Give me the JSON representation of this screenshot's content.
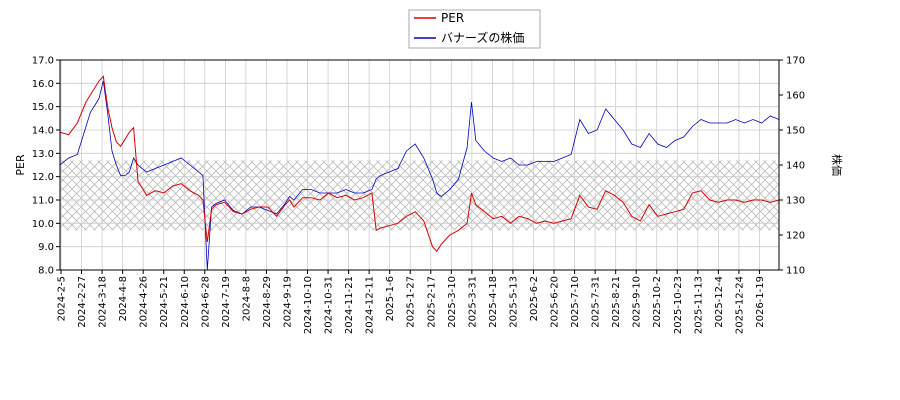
{
  "chart_data": {
    "type": "line",
    "legend": {
      "placement": "top-center",
      "entries": [
        "PER",
        "バナーズの株価"
      ]
    },
    "y_left": {
      "label": "PER",
      "range": [
        8.0,
        17.0
      ],
      "ticks": [
        "8.0",
        "9.0",
        "10.0",
        "11.0",
        "12.0",
        "13.0",
        "14.0",
        "15.0",
        "16.0",
        "17.0"
      ]
    },
    "y_right": {
      "label": "株価",
      "range": [
        110,
        170
      ],
      "ticks": [
        "110",
        "120",
        "130",
        "140",
        "150",
        "160",
        "170"
      ]
    },
    "x_axis": {
      "ticks": [
        "2024-2-5",
        "2024-2-27",
        "2024-3-18",
        "2024-4-8",
        "2024-4-26",
        "2024-5-21",
        "2024-6-10",
        "2024-6-28",
        "2024-7-19",
        "2024-8-8",
        "2024-8-29",
        "2024-9-19",
        "2024-10-10",
        "2024-10-31",
        "2024-11-21",
        "2024-12-11",
        "2025-1-6",
        "2025-1-27",
        "2025-2-17",
        "2025-3-10",
        "2025-3-31",
        "2025-4-18",
        "2025-5-13",
        "2025-6-2",
        "2025-6-20",
        "2025-7-10",
        "2025-7-31",
        "2025-8-21",
        "2025-9-10",
        "2025-10-2",
        "2025-10-23",
        "2025-11-13",
        "2025-12-4",
        "2025-12-24",
        "2026-1-19"
      ]
    },
    "grid": true,
    "shaded_band": {
      "axis": "left",
      "range": [
        9.7,
        12.7
      ],
      "pattern": "crosshatch"
    },
    "colors": {
      "PER": "#dd0000",
      "price": "#0000cc"
    },
    "series": [
      {
        "name": "PER",
        "axis": "left",
        "points": [
          [
            0,
            13.9
          ],
          [
            1,
            13.8
          ],
          [
            2,
            14.3
          ],
          [
            3,
            15.2
          ],
          [
            3.5,
            15.5
          ],
          [
            4,
            15.8
          ],
          [
            4.5,
            16.1
          ],
          [
            5,
            16.3
          ],
          [
            5.5,
            15.0
          ],
          [
            6,
            14.1
          ],
          [
            6.5,
            13.5
          ],
          [
            7,
            13.3
          ],
          [
            7.5,
            13.6
          ],
          [
            8,
            13.9
          ],
          [
            8.5,
            14.1
          ],
          [
            9,
            11.8
          ],
          [
            9.5,
            11.5
          ],
          [
            10,
            11.2
          ],
          [
            11,
            11.4
          ],
          [
            12,
            11.3
          ],
          [
            13,
            11.6
          ],
          [
            14,
            11.7
          ],
          [
            15,
            11.4
          ],
          [
            16,
            11.2
          ],
          [
            16.5,
            11.0
          ],
          [
            17,
            9.2
          ],
          [
            17.5,
            10.6
          ],
          [
            18,
            10.8
          ],
          [
            19,
            10.9
          ],
          [
            20,
            10.5
          ],
          [
            21,
            10.4
          ],
          [
            22,
            10.6
          ],
          [
            23,
            10.7
          ],
          [
            24,
            10.7
          ],
          [
            25,
            10.3
          ],
          [
            26,
            10.8
          ],
          [
            26.5,
            11.0
          ],
          [
            27,
            10.7
          ],
          [
            28,
            11.1
          ],
          [
            29,
            11.1
          ],
          [
            30,
            11.0
          ],
          [
            31,
            11.3
          ],
          [
            32,
            11.1
          ],
          [
            33,
            11.2
          ],
          [
            34,
            11.0
          ],
          [
            35,
            11.1
          ],
          [
            36,
            11.3
          ],
          [
            36.5,
            9.7
          ],
          [
            37,
            9.8
          ],
          [
            38,
            9.9
          ],
          [
            39,
            10.0
          ],
          [
            40,
            10.3
          ],
          [
            41,
            10.5
          ],
          [
            42,
            10.1
          ],
          [
            43,
            9.0
          ],
          [
            43.5,
            8.8
          ],
          [
            44,
            9.1
          ],
          [
            45,
            9.5
          ],
          [
            46,
            9.7
          ],
          [
            47,
            10.0
          ],
          [
            47.5,
            11.3
          ],
          [
            48,
            10.8
          ],
          [
            49,
            10.5
          ],
          [
            50,
            10.2
          ],
          [
            51,
            10.3
          ],
          [
            52,
            10.0
          ],
          [
            53,
            10.3
          ],
          [
            54,
            10.2
          ],
          [
            55,
            10.0
          ],
          [
            56,
            10.1
          ],
          [
            57,
            10.0
          ],
          [
            58,
            10.1
          ],
          [
            59,
            10.2
          ],
          [
            60,
            11.2
          ],
          [
            61,
            10.7
          ],
          [
            62,
            10.6
          ],
          [
            63,
            11.4
          ],
          [
            64,
            11.2
          ],
          [
            65,
            10.9
          ],
          [
            66,
            10.3
          ],
          [
            67,
            10.1
          ],
          [
            68,
            10.8
          ],
          [
            69,
            10.3
          ],
          [
            70,
            10.4
          ],
          [
            71,
            10.5
          ],
          [
            72,
            10.6
          ],
          [
            73,
            11.3
          ],
          [
            74,
            11.4
          ],
          [
            75,
            11.0
          ],
          [
            76,
            10.9
          ],
          [
            77,
            11.0
          ],
          [
            78,
            11.0
          ],
          [
            79,
            10.9
          ],
          [
            80,
            11.0
          ],
          [
            81,
            11.0
          ],
          [
            82,
            10.9
          ],
          [
            83,
            11.0
          ]
        ]
      },
      {
        "name": "バナーズの株価",
        "axis": "right",
        "points": [
          [
            0,
            140
          ],
          [
            1,
            142
          ],
          [
            2,
            143
          ],
          [
            3,
            151
          ],
          [
            3.5,
            155
          ],
          [
            4,
            157
          ],
          [
            4.5,
            159
          ],
          [
            5,
            164
          ],
          [
            5.5,
            155
          ],
          [
            6,
            144
          ],
          [
            6.5,
            140
          ],
          [
            7,
            137
          ],
          [
            7.5,
            137
          ],
          [
            8,
            138
          ],
          [
            8.5,
            142
          ],
          [
            9,
            140
          ],
          [
            9.5,
            139
          ],
          [
            10,
            138
          ],
          [
            11,
            139
          ],
          [
            12,
            140
          ],
          [
            13,
            141
          ],
          [
            14,
            142
          ],
          [
            15,
            140
          ],
          [
            16,
            138
          ],
          [
            16.5,
            137
          ],
          [
            17,
            110
          ],
          [
            17.5,
            128
          ],
          [
            18,
            129
          ],
          [
            19,
            130
          ],
          [
            20,
            127
          ],
          [
            21,
            126
          ],
          [
            22,
            128
          ],
          [
            23,
            128
          ],
          [
            24,
            127
          ],
          [
            25,
            126
          ],
          [
            26,
            129
          ],
          [
            26.5,
            131
          ],
          [
            27,
            130
          ],
          [
            28,
            133
          ],
          [
            29,
            133
          ],
          [
            30,
            132
          ],
          [
            31,
            132
          ],
          [
            32,
            132
          ],
          [
            33,
            133
          ],
          [
            34,
            132
          ],
          [
            35,
            132
          ],
          [
            36,
            133
          ],
          [
            36.5,
            136
          ],
          [
            37,
            137
          ],
          [
            38,
            138
          ],
          [
            39,
            139
          ],
          [
            40,
            144
          ],
          [
            41,
            146
          ],
          [
            42,
            142
          ],
          [
            43,
            136
          ],
          [
            43.5,
            132
          ],
          [
            44,
            131
          ],
          [
            45,
            133
          ],
          [
            46,
            136
          ],
          [
            47,
            145
          ],
          [
            47.5,
            158
          ],
          [
            48,
            147
          ],
          [
            49,
            144
          ],
          [
            50,
            142
          ],
          [
            51,
            141
          ],
          [
            52,
            142
          ],
          [
            53,
            140
          ],
          [
            54,
            140
          ],
          [
            55,
            141
          ],
          [
            56,
            141
          ],
          [
            57,
            141
          ],
          [
            58,
            142
          ],
          [
            59,
            143
          ],
          [
            60,
            153
          ],
          [
            61,
            149
          ],
          [
            62,
            150
          ],
          [
            63,
            156
          ],
          [
            64,
            153
          ],
          [
            65,
            150
          ],
          [
            66,
            146
          ],
          [
            67,
            145
          ],
          [
            68,
            149
          ],
          [
            69,
            146
          ],
          [
            70,
            145
          ],
          [
            71,
            147
          ],
          [
            72,
            148
          ],
          [
            73,
            151
          ],
          [
            74,
            153
          ],
          [
            75,
            152
          ],
          [
            76,
            152
          ],
          [
            77,
            152
          ],
          [
            78,
            153
          ],
          [
            79,
            152
          ],
          [
            80,
            153
          ],
          [
            81,
            152
          ],
          [
            82,
            154
          ],
          [
            83,
            153
          ]
        ]
      }
    ]
  }
}
